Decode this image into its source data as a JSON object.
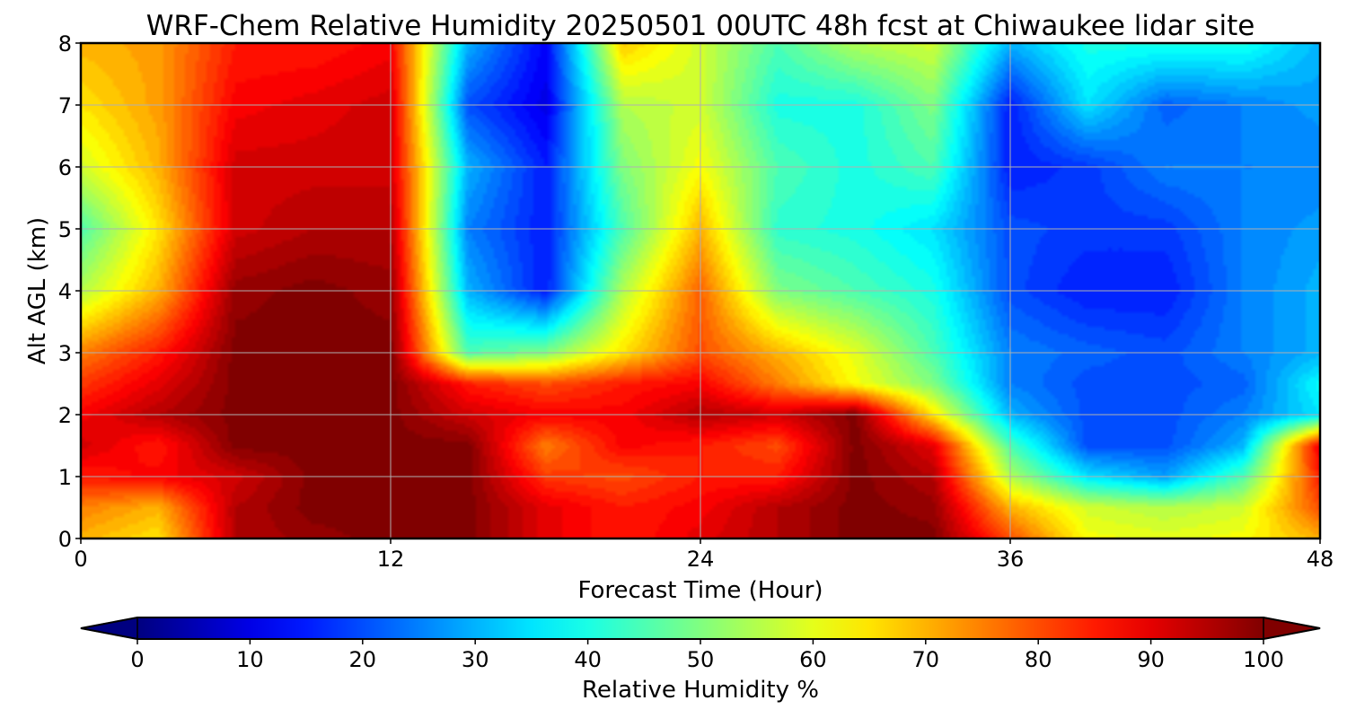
{
  "chart_data": {
    "type": "heatmap",
    "title": "WRF-Chem Relative Humidity 20250501 00UTC 48h fcst at Chiwaukee lidar site",
    "xlabel": "Forecast Time (Hour)",
    "ylabel": "Alt AGL (km)",
    "xlim": [
      0,
      48
    ],
    "ylim": [
      0,
      8
    ],
    "x_ticks": [
      0,
      12,
      24,
      36,
      48
    ],
    "y_ticks": [
      0,
      1,
      2,
      3,
      4,
      5,
      6,
      7,
      8
    ],
    "grid": true,
    "colormap": "jet",
    "colorbar": {
      "label": "Relative Humidity %",
      "range": [
        0,
        100
      ],
      "ticks": [
        0,
        10,
        20,
        30,
        40,
        50,
        60,
        70,
        80,
        90,
        100
      ],
      "extend": "both",
      "orientation": "horizontal"
    },
    "x": [
      0,
      3,
      6,
      9,
      12,
      15,
      18,
      21,
      24,
      27,
      30,
      33,
      36,
      39,
      42,
      45,
      48
    ],
    "y": [
      0,
      0.5,
      1,
      1.5,
      2,
      2.5,
      3,
      4,
      5,
      6,
      7,
      8
    ],
    "z": [
      [
        70,
        65,
        95,
        98,
        100,
        100,
        90,
        85,
        90,
        95,
        100,
        100,
        80,
        62,
        60,
        62,
        70
      ],
      [
        75,
        70,
        95,
        100,
        100,
        100,
        90,
        85,
        88,
        95,
        100,
        98,
        70,
        58,
        55,
        58,
        80
      ],
      [
        85,
        88,
        92,
        100,
        100,
        100,
        82,
        80,
        85,
        85,
        100,
        95,
        55,
        35,
        28,
        45,
        85
      ],
      [
        92,
        85,
        100,
        100,
        100,
        100,
        75,
        88,
        85,
        80,
        100,
        90,
        45,
        20,
        20,
        30,
        90
      ],
      [
        88,
        95,
        100,
        100,
        100,
        92,
        88,
        88,
        95,
        92,
        100,
        65,
        30,
        20,
        20,
        25,
        35
      ],
      [
        82,
        90,
        100,
        100,
        100,
        85,
        80,
        85,
        88,
        75,
        62,
        50,
        25,
        20,
        20,
        22,
        38
      ],
      [
        75,
        85,
        100,
        100,
        100,
        45,
        50,
        65,
        80,
        70,
        60,
        45,
        25,
        22,
        20,
        25,
        30
      ],
      [
        55,
        70,
        98,
        100,
        98,
        30,
        15,
        55,
        78,
        50,
        45,
        40,
        20,
        15,
        15,
        25,
        30
      ],
      [
        45,
        65,
        92,
        95,
        95,
        25,
        15,
        45,
        70,
        42,
        40,
        35,
        20,
        18,
        18,
        25,
        28
      ],
      [
        58,
        70,
        92,
        92,
        92,
        30,
        15,
        50,
        62,
        45,
        40,
        45,
        15,
        18,
        25,
        25,
        25
      ],
      [
        65,
        72,
        88,
        90,
        92,
        20,
        10,
        55,
        58,
        40,
        40,
        50,
        15,
        35,
        22,
        25,
        28
      ],
      [
        70,
        72,
        85,
        85,
        88,
        30,
        12,
        68,
        58,
        45,
        55,
        58,
        30,
        40,
        40,
        40,
        30
      ]
    ]
  }
}
